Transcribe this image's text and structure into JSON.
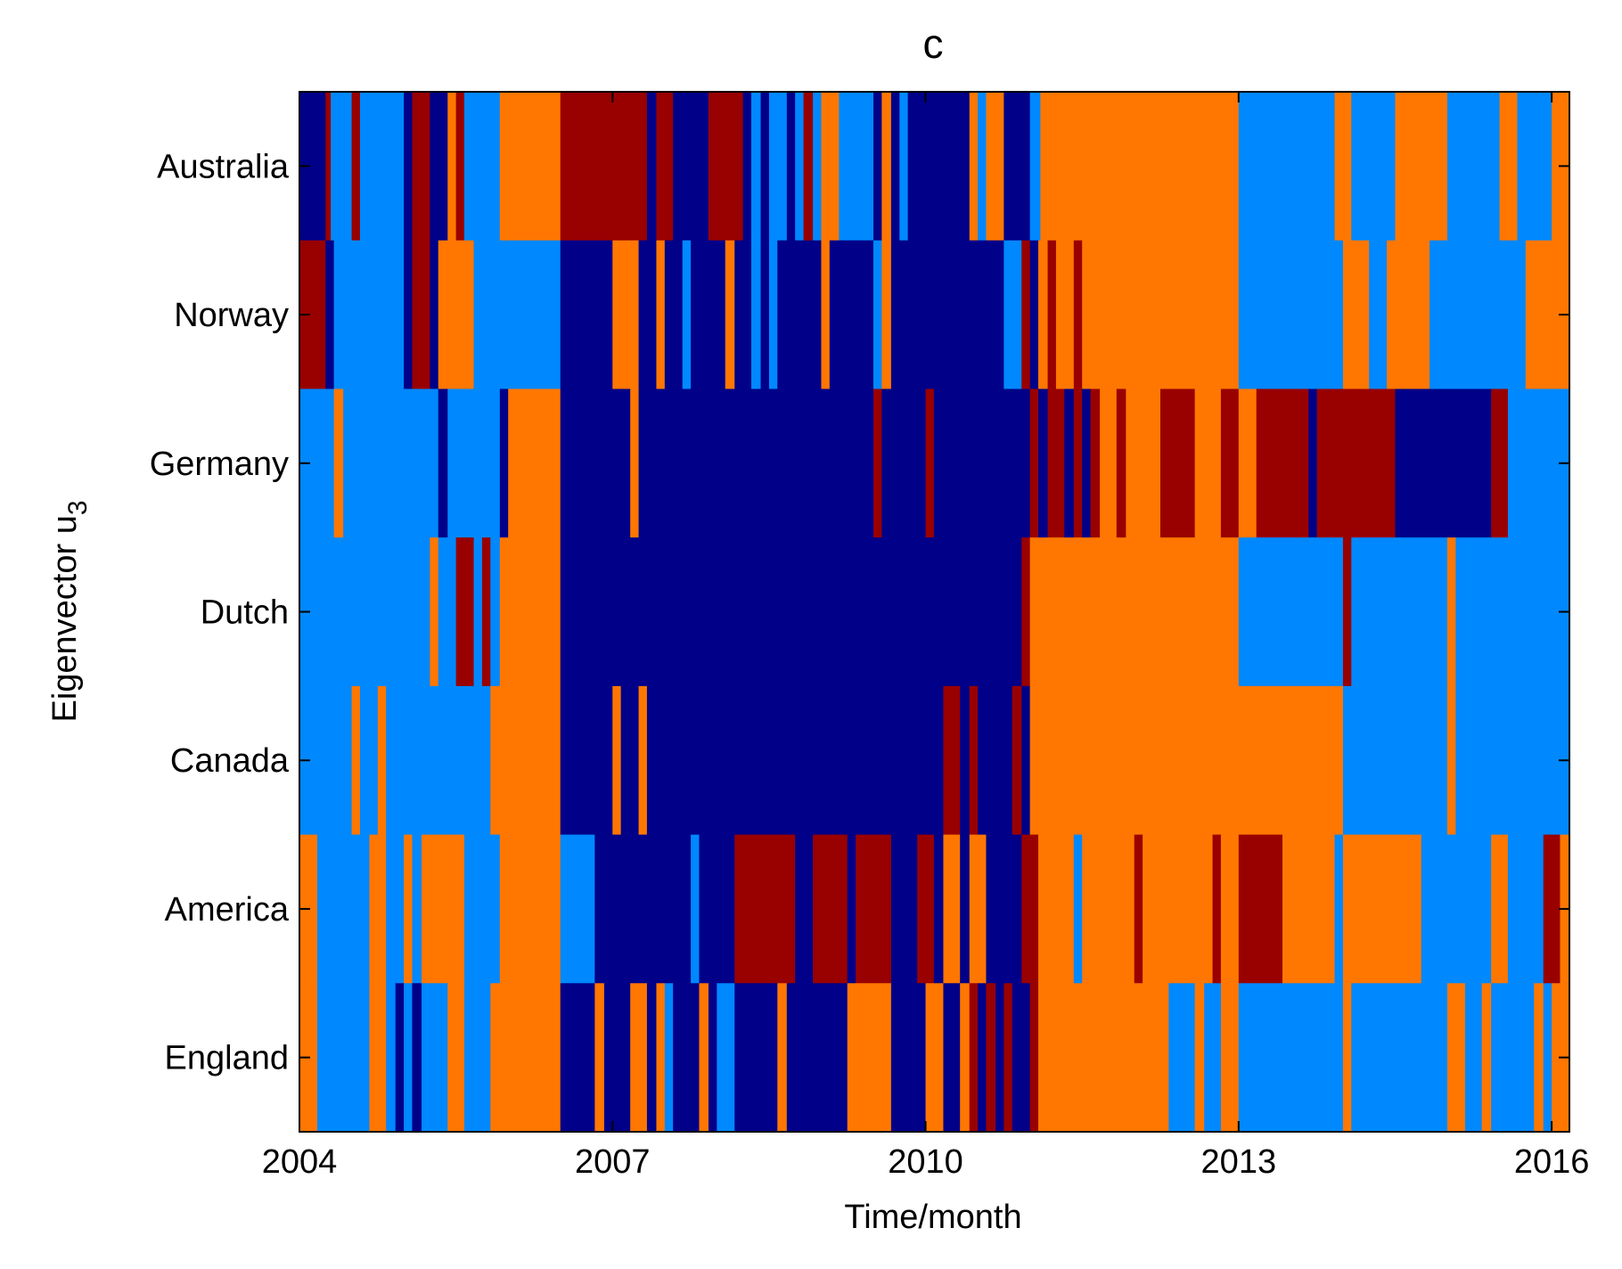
{
  "chart_data": {
    "type": "heatmap",
    "title": "c",
    "xlabel": "Time/month",
    "ylabel_main": "Eigenvector u",
    "ylabel_sub": "3",
    "x_range": [
      2004.0,
      2016.17
    ],
    "x_ticks": [
      2004,
      2007,
      2010,
      2013,
      2016
    ],
    "x_tick_labels": [
      "2004",
      "2007",
      "2010",
      "2013",
      "2016"
    ],
    "rows": [
      "Australia",
      "Norway",
      "Germany",
      "Dutch",
      "Canada",
      "America",
      "England"
    ],
    "palette": {
      "0": "#000088",
      "1": "#0088ff",
      "2": "#ff7700",
      "3": "#990000"
    },
    "category_names": [
      "dark-blue",
      "light-blue",
      "orange",
      "dark-red"
    ],
    "note": "segments are [start_year, end_year, color_category] per row",
    "segments": {
      "Australia": [
        [
          2004.0,
          2004.25,
          0
        ],
        [
          2004.25,
          2004.3,
          3
        ],
        [
          2004.3,
          2004.5,
          1
        ],
        [
          2004.5,
          2004.58,
          3
        ],
        [
          2004.58,
          2005.0,
          1
        ],
        [
          2005.0,
          2005.08,
          0
        ],
        [
          2005.08,
          2005.25,
          3
        ],
        [
          2005.25,
          2005.42,
          0
        ],
        [
          2005.42,
          2005.5,
          2
        ],
        [
          2005.5,
          2005.58,
          3
        ],
        [
          2005.58,
          2005.92,
          1
        ],
        [
          2005.92,
          2006.5,
          2
        ],
        [
          2006.5,
          2007.33,
          3
        ],
        [
          2007.33,
          2007.42,
          0
        ],
        [
          2007.42,
          2007.58,
          3
        ],
        [
          2007.58,
          2007.92,
          0
        ],
        [
          2007.92,
          2008.25,
          3
        ],
        [
          2008.25,
          2008.33,
          0
        ],
        [
          2008.33,
          2008.42,
          1
        ],
        [
          2008.42,
          2008.5,
          0
        ],
        [
          2008.5,
          2008.67,
          1
        ],
        [
          2008.67,
          2008.75,
          0
        ],
        [
          2008.75,
          2008.83,
          1
        ],
        [
          2008.83,
          2008.92,
          3
        ],
        [
          2008.92,
          2009.0,
          1
        ],
        [
          2009.0,
          2009.17,
          2
        ],
        [
          2009.17,
          2009.5,
          1
        ],
        [
          2009.5,
          2009.58,
          0
        ],
        [
          2009.58,
          2009.67,
          2
        ],
        [
          2009.67,
          2009.75,
          0
        ],
        [
          2009.75,
          2009.83,
          1
        ],
        [
          2009.83,
          2010.0,
          0
        ],
        [
          2010.0,
          2010.42,
          0
        ],
        [
          2010.42,
          2010.5,
          2
        ],
        [
          2010.5,
          2010.58,
          1
        ],
        [
          2010.58,
          2010.75,
          2
        ],
        [
          2010.75,
          2011.0,
          0
        ],
        [
          2011.0,
          2011.1,
          1
        ],
        [
          2011.1,
          2013.0,
          2
        ],
        [
          2013.0,
          2013.92,
          1
        ],
        [
          2013.92,
          2014.08,
          2
        ],
        [
          2014.08,
          2014.5,
          1
        ],
        [
          2014.5,
          2015.0,
          2
        ],
        [
          2015.0,
          2015.5,
          1
        ],
        [
          2015.5,
          2015.67,
          2
        ],
        [
          2015.67,
          2016.0,
          1
        ],
        [
          2016.0,
          2016.17,
          2
        ]
      ],
      "Norway": [
        [
          2004.0,
          2004.25,
          3
        ],
        [
          2004.25,
          2004.33,
          0
        ],
        [
          2004.33,
          2005.0,
          1
        ],
        [
          2005.0,
          2005.08,
          0
        ],
        [
          2005.08,
          2005.25,
          3
        ],
        [
          2005.25,
          2005.33,
          0
        ],
        [
          2005.33,
          2005.67,
          2
        ],
        [
          2005.67,
          2006.5,
          1
        ],
        [
          2006.5,
          2007.0,
          0
        ],
        [
          2007.0,
          2007.25,
          2
        ],
        [
          2007.25,
          2007.42,
          0
        ],
        [
          2007.42,
          2007.5,
          2
        ],
        [
          2007.5,
          2007.67,
          0
        ],
        [
          2007.67,
          2007.75,
          1
        ],
        [
          2007.75,
          2008.08,
          0
        ],
        [
          2008.08,
          2008.17,
          2
        ],
        [
          2008.17,
          2008.33,
          0
        ],
        [
          2008.33,
          2008.42,
          1
        ],
        [
          2008.42,
          2008.5,
          0
        ],
        [
          2008.5,
          2008.58,
          1
        ],
        [
          2008.58,
          2009.0,
          0
        ],
        [
          2009.0,
          2009.08,
          2
        ],
        [
          2009.08,
          2009.5,
          0
        ],
        [
          2009.5,
          2009.58,
          1
        ],
        [
          2009.58,
          2009.67,
          2
        ],
        [
          2009.67,
          2010.75,
          0
        ],
        [
          2010.75,
          2010.92,
          1
        ],
        [
          2010.92,
          2011.0,
          3
        ],
        [
          2011.0,
          2011.08,
          0
        ],
        [
          2011.08,
          2011.17,
          2
        ],
        [
          2011.17,
          2011.25,
          3
        ],
        [
          2011.25,
          2011.42,
          2
        ],
        [
          2011.42,
          2011.5,
          3
        ],
        [
          2011.5,
          2013.0,
          2
        ],
        [
          2013.0,
          2014.0,
          1
        ],
        [
          2014.0,
          2014.25,
          2
        ],
        [
          2014.25,
          2014.42,
          1
        ],
        [
          2014.42,
          2014.83,
          2
        ],
        [
          2014.83,
          2015.75,
          1
        ],
        [
          2015.75,
          2016.17,
          2
        ]
      ],
      "Germany": [
        [
          2004.0,
          2004.33,
          1
        ],
        [
          2004.33,
          2004.42,
          2
        ],
        [
          2004.42,
          2005.33,
          1
        ],
        [
          2005.33,
          2005.42,
          0
        ],
        [
          2005.42,
          2005.92,
          1
        ],
        [
          2005.92,
          2006.0,
          0
        ],
        [
          2006.0,
          2006.5,
          2
        ],
        [
          2006.5,
          2007.17,
          0
        ],
        [
          2007.17,
          2007.25,
          2
        ],
        [
          2007.25,
          2009.5,
          0
        ],
        [
          2009.5,
          2009.58,
          3
        ],
        [
          2009.58,
          2010.0,
          0
        ],
        [
          2010.0,
          2010.08,
          3
        ],
        [
          2010.08,
          2011.0,
          0
        ],
        [
          2011.0,
          2011.08,
          3
        ],
        [
          2011.08,
          2011.17,
          0
        ],
        [
          2011.17,
          2011.33,
          3
        ],
        [
          2011.33,
          2011.42,
          0
        ],
        [
          2011.42,
          2011.5,
          3
        ],
        [
          2011.5,
          2011.58,
          0
        ],
        [
          2011.58,
          2011.67,
          3
        ],
        [
          2011.67,
          2011.83,
          2
        ],
        [
          2011.83,
          2011.92,
          3
        ],
        [
          2011.92,
          2012.25,
          2
        ],
        [
          2012.25,
          2012.58,
          3
        ],
        [
          2012.58,
          2012.83,
          2
        ],
        [
          2012.83,
          2013.0,
          3
        ],
        [
          2013.0,
          2013.17,
          2
        ],
        [
          2013.17,
          2013.67,
          3
        ],
        [
          2013.67,
          2013.75,
          0
        ],
        [
          2013.75,
          2013.92,
          3
        ],
        [
          2013.92,
          2014.5,
          3
        ],
        [
          2014.5,
          2015.42,
          0
        ],
        [
          2015.42,
          2015.58,
          3
        ],
        [
          2015.58,
          2016.17,
          1
        ]
      ],
      "Dutch": [
        [
          2004.0,
          2005.25,
          1
        ],
        [
          2005.25,
          2005.33,
          2
        ],
        [
          2005.33,
          2005.5,
          1
        ],
        [
          2005.5,
          2005.67,
          3
        ],
        [
          2005.67,
          2005.75,
          1
        ],
        [
          2005.75,
          2005.83,
          3
        ],
        [
          2005.83,
          2005.92,
          1
        ],
        [
          2005.92,
          2006.5,
          2
        ],
        [
          2006.5,
          2010.92,
          0
        ],
        [
          2010.92,
          2011.0,
          3
        ],
        [
          2011.0,
          2013.0,
          2
        ],
        [
          2013.0,
          2014.0,
          1
        ],
        [
          2014.0,
          2014.08,
          3
        ],
        [
          2014.08,
          2015.0,
          1
        ],
        [
          2015.0,
          2015.08,
          2
        ],
        [
          2015.08,
          2016.17,
          1
        ]
      ],
      "Canada": [
        [
          2004.0,
          2004.5,
          1
        ],
        [
          2004.5,
          2004.58,
          2
        ],
        [
          2004.58,
          2004.75,
          1
        ],
        [
          2004.75,
          2004.83,
          2
        ],
        [
          2004.83,
          2005.83,
          1
        ],
        [
          2005.83,
          2006.5,
          2
        ],
        [
          2006.5,
          2007.0,
          0
        ],
        [
          2007.0,
          2007.08,
          2
        ],
        [
          2007.08,
          2007.25,
          0
        ],
        [
          2007.25,
          2007.33,
          2
        ],
        [
          2007.33,
          2010.17,
          0
        ],
        [
          2010.17,
          2010.33,
          3
        ],
        [
          2010.33,
          2010.42,
          0
        ],
        [
          2010.42,
          2010.5,
          3
        ],
        [
          2010.5,
          2010.83,
          0
        ],
        [
          2010.83,
          2010.92,
          3
        ],
        [
          2010.92,
          2011.0,
          0
        ],
        [
          2011.0,
          2014.0,
          2
        ],
        [
          2014.0,
          2014.08,
          1
        ],
        [
          2014.08,
          2015.0,
          1
        ],
        [
          2015.0,
          2015.08,
          2
        ],
        [
          2015.08,
          2016.17,
          1
        ]
      ],
      "America": [
        [
          2004.0,
          2004.17,
          2
        ],
        [
          2004.17,
          2004.67,
          1
        ],
        [
          2004.67,
          2004.83,
          2
        ],
        [
          2004.83,
          2005.0,
          1
        ],
        [
          2005.0,
          2005.08,
          2
        ],
        [
          2005.08,
          2005.17,
          1
        ],
        [
          2005.17,
          2005.58,
          2
        ],
        [
          2005.58,
          2005.92,
          1
        ],
        [
          2005.92,
          2006.5,
          2
        ],
        [
          2006.5,
          2006.83,
          1
        ],
        [
          2006.83,
          2007.75,
          0
        ],
        [
          2007.75,
          2007.83,
          1
        ],
        [
          2007.83,
          2008.17,
          0
        ],
        [
          2008.17,
          2008.75,
          3
        ],
        [
          2008.75,
          2008.92,
          0
        ],
        [
          2008.92,
          2009.25,
          3
        ],
        [
          2009.25,
          2009.33,
          0
        ],
        [
          2009.33,
          2009.67,
          3
        ],
        [
          2009.67,
          2009.92,
          0
        ],
        [
          2009.92,
          2010.08,
          3
        ],
        [
          2010.08,
          2010.17,
          0
        ],
        [
          2010.17,
          2010.33,
          2
        ],
        [
          2010.33,
          2010.42,
          0
        ],
        [
          2010.42,
          2010.58,
          2
        ],
        [
          2010.58,
          2010.92,
          0
        ],
        [
          2010.92,
          2011.08,
          3
        ],
        [
          2011.08,
          2011.42,
          2
        ],
        [
          2011.42,
          2011.5,
          1
        ],
        [
          2011.5,
          2012.0,
          2
        ],
        [
          2012.0,
          2012.08,
          3
        ],
        [
          2012.08,
          2012.75,
          2
        ],
        [
          2012.75,
          2012.83,
          3
        ],
        [
          2012.83,
          2013.0,
          2
        ],
        [
          2013.0,
          2013.42,
          3
        ],
        [
          2013.42,
          2013.92,
          2
        ],
        [
          2013.92,
          2014.0,
          1
        ],
        [
          2014.0,
          2014.75,
          2
        ],
        [
          2014.75,
          2015.42,
          1
        ],
        [
          2015.42,
          2015.58,
          2
        ],
        [
          2015.58,
          2015.92,
          1
        ],
        [
          2015.92,
          2016.08,
          3
        ],
        [
          2016.08,
          2016.17,
          2
        ]
      ],
      "England": [
        [
          2004.0,
          2004.17,
          2
        ],
        [
          2004.17,
          2004.67,
          1
        ],
        [
          2004.67,
          2004.83,
          2
        ],
        [
          2004.83,
          2004.92,
          1
        ],
        [
          2004.92,
          2005.0,
          0
        ],
        [
          2005.0,
          2005.08,
          1
        ],
        [
          2005.08,
          2005.17,
          0
        ],
        [
          2005.17,
          2005.42,
          1
        ],
        [
          2005.42,
          2005.58,
          2
        ],
        [
          2005.58,
          2005.83,
          1
        ],
        [
          2005.83,
          2006.5,
          2
        ],
        [
          2006.5,
          2006.83,
          0
        ],
        [
          2006.83,
          2006.92,
          2
        ],
        [
          2006.92,
          2007.17,
          0
        ],
        [
          2007.17,
          2007.33,
          2
        ],
        [
          2007.33,
          2007.42,
          0
        ],
        [
          2007.42,
          2007.5,
          2
        ],
        [
          2007.5,
          2007.58,
          1
        ],
        [
          2007.58,
          2007.83,
          0
        ],
        [
          2007.83,
          2007.92,
          2
        ],
        [
          2007.92,
          2008.0,
          0
        ],
        [
          2008.0,
          2008.17,
          1
        ],
        [
          2008.17,
          2008.58,
          0
        ],
        [
          2008.58,
          2008.67,
          2
        ],
        [
          2008.67,
          2009.25,
          0
        ],
        [
          2009.25,
          2009.67,
          2
        ],
        [
          2009.67,
          2010.0,
          0
        ],
        [
          2010.0,
          2010.17,
          2
        ],
        [
          2010.17,
          2010.33,
          0
        ],
        [
          2010.33,
          2010.42,
          2
        ],
        [
          2010.42,
          2010.5,
          3
        ],
        [
          2010.5,
          2010.58,
          0
        ],
        [
          2010.58,
          2010.67,
          3
        ],
        [
          2010.67,
          2010.75,
          0
        ],
        [
          2010.75,
          2010.83,
          3
        ],
        [
          2010.83,
          2011.0,
          0
        ],
        [
          2011.0,
          2011.08,
          3
        ],
        [
          2011.08,
          2012.33,
          2
        ],
        [
          2012.33,
          2012.58,
          1
        ],
        [
          2012.58,
          2012.67,
          2
        ],
        [
          2012.67,
          2012.83,
          1
        ],
        [
          2012.83,
          2013.0,
          2
        ],
        [
          2013.0,
          2014.0,
          1
        ],
        [
          2014.0,
          2014.08,
          2
        ],
        [
          2014.08,
          2015.0,
          1
        ],
        [
          2015.0,
          2015.17,
          2
        ],
        [
          2015.17,
          2015.33,
          1
        ],
        [
          2015.33,
          2015.42,
          2
        ],
        [
          2015.42,
          2015.83,
          1
        ],
        [
          2015.83,
          2015.92,
          2
        ],
        [
          2015.92,
          2016.0,
          1
        ],
        [
          2016.0,
          2016.17,
          2
        ]
      ]
    }
  }
}
